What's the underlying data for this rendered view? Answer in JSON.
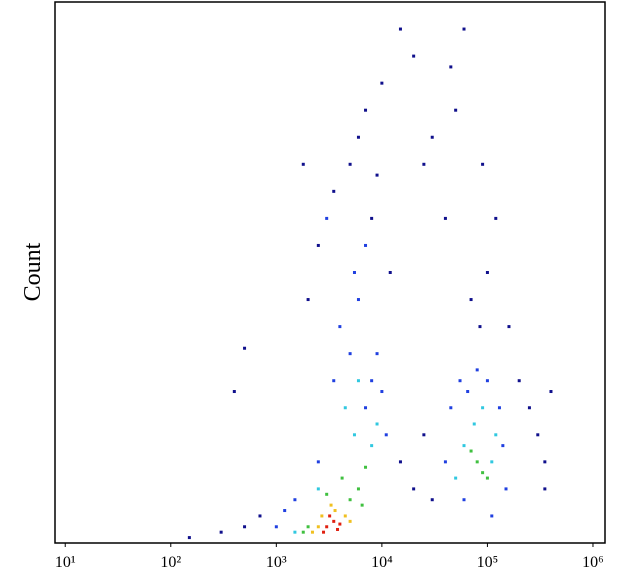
{
  "chart_data": {
    "type": "scatter",
    "ylabel": "Count",
    "xscale": "log",
    "xlim": [
      8,
      1300000
    ],
    "ylim": [
      0,
      100
    ],
    "xticks": [
      {
        "value": 10,
        "label": "10¹"
      },
      {
        "value": 100,
        "label": "10²"
      },
      {
        "value": 1000,
        "label": "10³"
      },
      {
        "value": 10000,
        "label": "10⁴"
      },
      {
        "value": 100000,
        "label": "10⁵"
      },
      {
        "value": 1000000,
        "label": "10⁶"
      }
    ],
    "series": [
      {
        "color": "#10108c",
        "x": [
          150,
          300,
          500,
          700,
          20000,
          25000,
          30000,
          15000,
          2000,
          2500,
          3500,
          5000,
          8000,
          12000,
          7000,
          10000,
          20000,
          15000,
          30000,
          25000,
          40000,
          50000,
          60000,
          45000,
          90000,
          120000,
          100000,
          160000,
          200000,
          250000,
          300000,
          350000,
          400000,
          350000,
          70000,
          85000,
          6000,
          9000,
          400,
          500,
          1800
        ],
        "values": [
          1,
          2,
          3,
          5,
          10,
          20,
          8,
          15,
          45,
          55,
          65,
          70,
          60,
          50,
          80,
          85,
          90,
          95,
          75,
          70,
          60,
          80,
          95,
          88,
          70,
          60,
          50,
          40,
          30,
          25,
          20,
          15,
          28,
          10,
          45,
          40,
          75,
          68,
          28,
          36,
          70
        ]
      },
      {
        "color": "#2040e0",
        "x": [
          1000,
          1200,
          7000,
          8000,
          5000,
          4000,
          6000,
          3500,
          9000,
          10000,
          11000,
          2500,
          1500,
          40000,
          45000,
          55000,
          65000,
          130000,
          140000,
          150000,
          100000,
          80000,
          60000,
          110000,
          7000,
          5500,
          3000
        ],
        "values": [
          3,
          6,
          25,
          30,
          35,
          40,
          45,
          30,
          35,
          28,
          20,
          15,
          8,
          15,
          25,
          30,
          28,
          25,
          18,
          10,
          30,
          32,
          8,
          5,
          55,
          50,
          60
        ]
      },
      {
        "color": "#30c8e0",
        "x": [
          1500,
          8000,
          5500,
          4500,
          9000,
          2500,
          60000,
          110000,
          75000,
          120000,
          50000,
          90000,
          6000
        ],
        "values": [
          2,
          18,
          20,
          25,
          22,
          10,
          18,
          15,
          22,
          20,
          12,
          25,
          30
        ]
      },
      {
        "color": "#40c040",
        "x": [
          2000,
          5000,
          6000,
          4200,
          3000,
          1800,
          7000,
          6500,
          80000,
          90000,
          70000,
          100000
        ],
        "values": [
          3,
          8,
          10,
          12,
          9,
          2,
          14,
          7,
          15,
          13,
          17,
          12
        ]
      },
      {
        "color": "#f0c020",
        "x": [
          2500,
          4500,
          3300,
          2200,
          5000,
          3600,
          2700
        ],
        "values": [
          3,
          5,
          7,
          2,
          4,
          6,
          5
        ]
      },
      {
        "color": "#e02010",
        "x": [
          3000,
          3500,
          4000,
          3200,
          3800,
          2800
        ],
        "values": [
          3,
          4,
          3.5,
          5,
          2.5,
          2
        ]
      }
    ]
  }
}
